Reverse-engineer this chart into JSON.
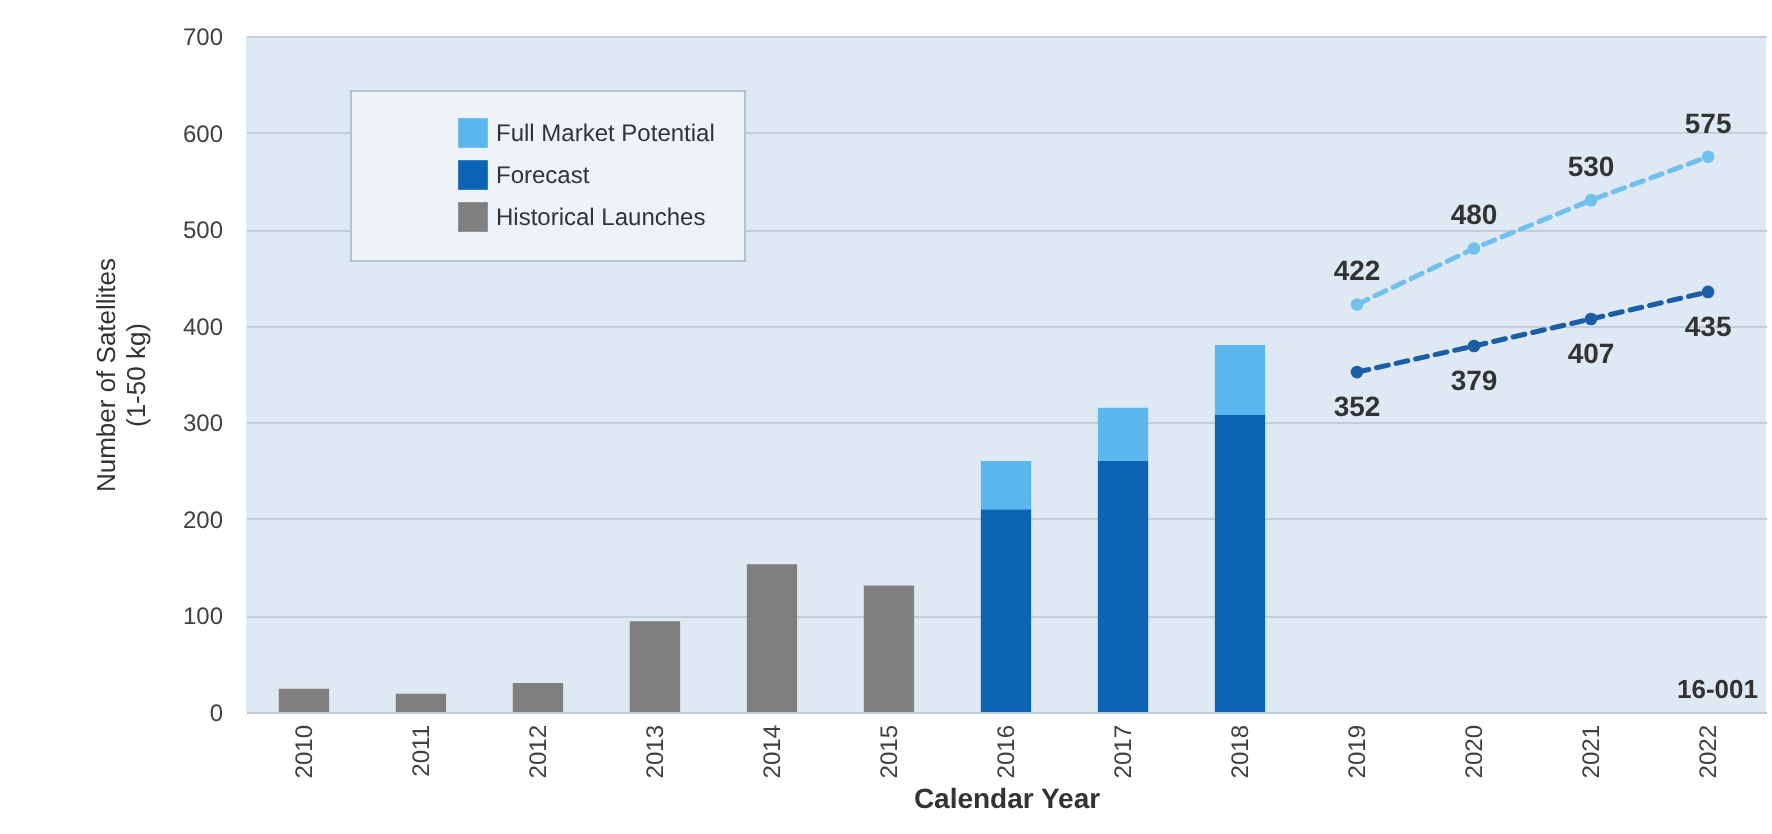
{
  "chart_data": {
    "type": "bar",
    "xlabel": "Calendar Year",
    "ylabel": "Number of Satellites\n(1-50 kg)",
    "categories": [
      "2010",
      "2011",
      "2012",
      "2013",
      "2014",
      "2015",
      "2016",
      "2017",
      "2018",
      "2019",
      "2020",
      "2021",
      "2022"
    ],
    "series": [
      {
        "type": "line",
        "color": "#72c0ee",
        "values": [
          null,
          null,
          null,
          null,
          null,
          null,
          null,
          null,
          null,
          422,
          480,
          530,
          575
        ],
        "value_labels": [
          null,
          null,
          null,
          null,
          null,
          null,
          null,
          null,
          null,
          "422",
          "480",
          "530",
          "575"
        ]
      },
      {
        "type": "line",
        "color": "#1b5ea6",
        "values": [
          null,
          null,
          null,
          null,
          null,
          null,
          null,
          null,
          null,
          352,
          379,
          407,
          435
        ],
        "value_labels": [
          null,
          null,
          null,
          null,
          null,
          null,
          null,
          null,
          null,
          "352",
          "379",
          "407",
          "435"
        ]
      },
      {
        "name": "Historical Launches",
        "color": "#7f7f7f",
        "values": [
          24,
          19,
          30,
          94,
          153,
          131,
          null,
          null,
          null,
          null,
          null,
          null,
          null
        ]
      },
      {
        "name": "Forecast",
        "color": "#0b64b4",
        "values": [
          null,
          null,
          null,
          null,
          null,
          null,
          210,
          260,
          308,
          null,
          null,
          null,
          null
        ]
      },
      {
        "name": "Full Market Potential",
        "color": "#5bb7ee",
        "values": [
          null,
          null,
          null,
          null,
          null,
          null,
          50,
          55,
          72,
          null,
          null,
          null,
          null
        ]
      }
    ],
    "stacked": true,
    "ylim": [
      0,
      700
    ],
    "yticks": [
      0,
      100,
      200,
      300,
      400,
      500,
      600,
      700
    ],
    "grid": "y",
    "legend": "top left",
    "marker": "circle",
    "line_style": "dashed",
    "annotations": [
      "16-001"
    ]
  }
}
